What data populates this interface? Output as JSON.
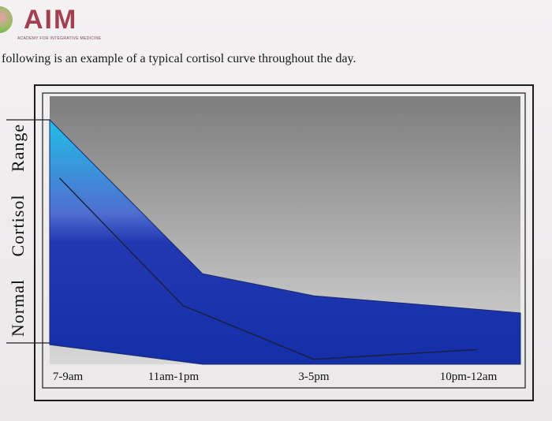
{
  "header": {
    "logo_text": "AIM",
    "logo_tagline": "ACADEMY FOR INTEGRATIVE MEDICINE",
    "caption": "following is an example of a typical cortisol curve throughout the day."
  },
  "chart_data": {
    "type": "line",
    "categories": [
      "7-9am",
      "11am-1pm",
      "3-5pm",
      "10pm-12am"
    ],
    "ylabel": "Normal Cortisol Range",
    "xlabel": "",
    "title": "",
    "band_upper": [
      100,
      37,
      28,
      21
    ],
    "band_lower": [
      8,
      0,
      0,
      0
    ],
    "series": [
      {
        "values": [
          76,
          24,
          2,
          6
        ]
      }
    ],
    "ylim": [
      0,
      100
    ],
    "grid": false,
    "legend": "none",
    "colors": {
      "background_top": "#7d7d7d",
      "background_bottom": "#d8d8d8",
      "band_top": "#21bde6",
      "band_bottom": "#142fa8",
      "line": "#1b1f3a"
    }
  }
}
